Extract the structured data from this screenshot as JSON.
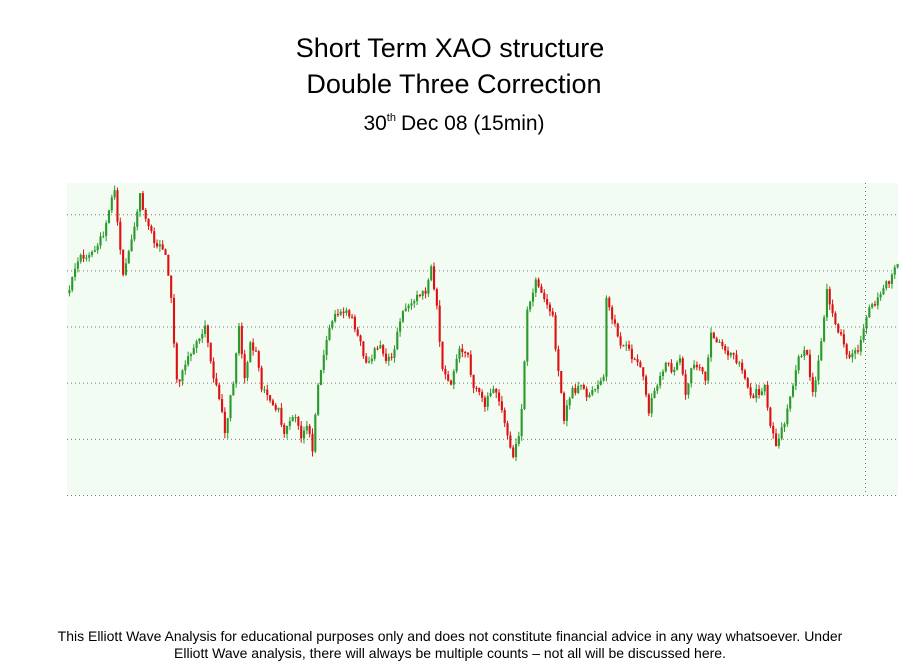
{
  "title": {
    "line1": "Short Term XAO structure",
    "line2": "Double Three Correction",
    "date_day": "30",
    "date_suffix": "th",
    "date_rest": "Dec 08 (15min)"
  },
  "disclaimer": {
    "line1": "This Elliott Wave Analysis for educational purposes only and does not constitute financial advice in any way whatsoever. Under",
    "line2": "Elliott Wave analysis, there will always be multiple counts – not all will be discussed here."
  },
  "colors": {
    "background": "#ffffff",
    "plot_background": "#f3fcf3",
    "up_bar": "#2a9a2a",
    "down_bar": "#dd1111",
    "wick": "#8a1010",
    "grid": "#777777"
  },
  "chart_data": {
    "type": "candlestick",
    "interval": "15min",
    "grid": true,
    "axis_labels_visible": false,
    "ylim": [
      0,
      100
    ],
    "y_gridlines": [
      18,
      36,
      54,
      72,
      90
    ],
    "anchors": [
      [
        0,
        67
      ],
      [
        3,
        76
      ],
      [
        6,
        76
      ],
      [
        9,
        79
      ],
      [
        12,
        84
      ],
      [
        16,
        98
      ],
      [
        19,
        70
      ],
      [
        22,
        82
      ],
      [
        25,
        96
      ],
      [
        28,
        86
      ],
      [
        31,
        80
      ],
      [
        34,
        78
      ],
      [
        36,
        62
      ],
      [
        38,
        36
      ],
      [
        41,
        41
      ],
      [
        44,
        48
      ],
      [
        46,
        49
      ],
      [
        48,
        53
      ],
      [
        51,
        38
      ],
      [
        53,
        32
      ],
      [
        55,
        19
      ],
      [
        58,
        37
      ],
      [
        60,
        53
      ],
      [
        62,
        37
      ],
      [
        64,
        48
      ],
      [
        66,
        45
      ],
      [
        68,
        34
      ],
      [
        70,
        32
      ],
      [
        72,
        30
      ],
      [
        74,
        27
      ],
      [
        76,
        20
      ],
      [
        78,
        24
      ],
      [
        80,
        26
      ],
      [
        82,
        19
      ],
      [
        84,
        22
      ],
      [
        86,
        15
      ],
      [
        88,
        34
      ],
      [
        91,
        50
      ],
      [
        94,
        58
      ],
      [
        97,
        59
      ],
      [
        100,
        56
      ],
      [
        102,
        52
      ],
      [
        104,
        44
      ],
      [
        106,
        42
      ],
      [
        108,
        46
      ],
      [
        110,
        48
      ],
      [
        112,
        44
      ],
      [
        114,
        43
      ],
      [
        117,
        56
      ],
      [
        120,
        62
      ],
      [
        123,
        64
      ],
      [
        126,
        65
      ],
      [
        128,
        72
      ],
      [
        130,
        60
      ],
      [
        132,
        40
      ],
      [
        135,
        36
      ],
      [
        138,
        47
      ],
      [
        141,
        45
      ],
      [
        143,
        34
      ],
      [
        145,
        33
      ],
      [
        147,
        29
      ],
      [
        150,
        35
      ],
      [
        153,
        28
      ],
      [
        155,
        18
      ],
      [
        157,
        13
      ],
      [
        159,
        18
      ],
      [
        160,
        27
      ],
      [
        162,
        60
      ],
      [
        165,
        68
      ],
      [
        168,
        63
      ],
      [
        171,
        57
      ],
      [
        173,
        39
      ],
      [
        175,
        25
      ],
      [
        178,
        34
      ],
      [
        181,
        34
      ],
      [
        183,
        32
      ],
      [
        185,
        34
      ],
      [
        187,
        34
      ],
      [
        189,
        38
      ],
      [
        190,
        64
      ],
      [
        192,
        56
      ],
      [
        195,
        49
      ],
      [
        198,
        46
      ],
      [
        201,
        42
      ],
      [
        203,
        38
      ],
      [
        205,
        27
      ],
      [
        208,
        36
      ],
      [
        211,
        42
      ],
      [
        214,
        40
      ],
      [
        216,
        43
      ],
      [
        218,
        33
      ],
      [
        220,
        40
      ],
      [
        222,
        42
      ],
      [
        225,
        37
      ],
      [
        227,
        52
      ],
      [
        230,
        49
      ],
      [
        232,
        45
      ],
      [
        235,
        44
      ],
      [
        238,
        40
      ],
      [
        241,
        31
      ],
      [
        243,
        33
      ],
      [
        246,
        34
      ],
      [
        248,
        21
      ],
      [
        250,
        17
      ],
      [
        253,
        24
      ],
      [
        256,
        35
      ],
      [
        258,
        45
      ],
      [
        261,
        46
      ],
      [
        263,
        32
      ],
      [
        265,
        42
      ],
      [
        268,
        65
      ],
      [
        271,
        55
      ],
      [
        274,
        48
      ],
      [
        276,
        44
      ],
      [
        279,
        47
      ],
      [
        282,
        58
      ],
      [
        285,
        62
      ],
      [
        288,
        66
      ],
      [
        291,
        70
      ],
      [
        293,
        74
      ]
    ]
  }
}
